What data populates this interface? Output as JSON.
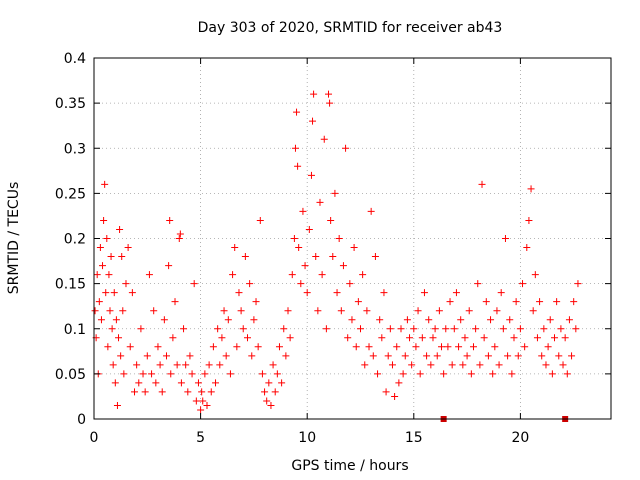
{
  "chart_data": {
    "type": "scatter",
    "title": "Day 303 of 2020, SRMTID for receiver ab43",
    "xlabel": "GPS time / hours",
    "ylabel": "SRMTID / TECUs",
    "xlim": [
      0,
      24.25
    ],
    "ylim": [
      0,
      0.4
    ],
    "grid": true,
    "marker_style": "plus",
    "color": "#ff0000",
    "x_ticks": [
      {
        "value": 0,
        "label": "0"
      },
      {
        "value": 5,
        "label": "5"
      },
      {
        "value": 10,
        "label": "10"
      },
      {
        "value": 15,
        "label": "15"
      },
      {
        "value": 20,
        "label": "20"
      }
    ],
    "y_ticks": [
      {
        "value": 0,
        "label": "0"
      },
      {
        "value": 0.05,
        "label": "0.05"
      },
      {
        "value": 0.1,
        "label": "0.1"
      },
      {
        "value": 0.15,
        "label": "0.15"
      },
      {
        "value": 0.2,
        "label": "0.2"
      },
      {
        "value": 0.25,
        "label": "0.25"
      },
      {
        "value": 0.3,
        "label": "0.3"
      },
      {
        "value": 0.35,
        "label": "0.35"
      },
      {
        "value": 0.4,
        "label": "0.4"
      }
    ],
    "series": [
      {
        "name": "SRMTID",
        "points": [
          [
            0.05,
            0.12
          ],
          [
            0.1,
            0.09
          ],
          [
            0.15,
            0.16
          ],
          [
            0.2,
            0.05
          ],
          [
            0.25,
            0.13
          ],
          [
            0.3,
            0.19
          ],
          [
            0.35,
            0.11
          ],
          [
            0.4,
            0.17
          ],
          [
            0.45,
            0.22
          ],
          [
            0.5,
            0.26
          ],
          [
            0.55,
            0.14
          ],
          [
            0.6,
            0.2
          ],
          [
            0.65,
            0.08
          ],
          [
            0.7,
            0.16
          ],
          [
            0.75,
            0.12
          ],
          [
            0.8,
            0.18
          ],
          [
            0.85,
            0.1
          ],
          [
            0.9,
            0.06
          ],
          [
            0.95,
            0.14
          ],
          [
            1.0,
            0.04
          ],
          [
            1.05,
            0.11
          ],
          [
            1.1,
            0.015
          ],
          [
            1.15,
            0.09
          ],
          [
            1.2,
            0.21
          ],
          [
            1.25,
            0.07
          ],
          [
            1.3,
            0.18
          ],
          [
            1.35,
            0.12
          ],
          [
            1.4,
            0.05
          ],
          [
            1.5,
            0.15
          ],
          [
            1.6,
            0.19
          ],
          [
            1.7,
            0.08
          ],
          [
            1.8,
            0.14
          ],
          [
            1.9,
            0.03
          ],
          [
            2.0,
            0.06
          ],
          [
            2.1,
            0.04
          ],
          [
            2.2,
            0.1
          ],
          [
            2.3,
            0.05
          ],
          [
            2.4,
            0.03
          ],
          [
            2.5,
            0.07
          ],
          [
            2.6,
            0.16
          ],
          [
            2.7,
            0.05
          ],
          [
            2.8,
            0.12
          ],
          [
            2.9,
            0.04
          ],
          [
            3.0,
            0.08
          ],
          [
            3.1,
            0.06
          ],
          [
            3.2,
            0.03
          ],
          [
            3.3,
            0.11
          ],
          [
            3.4,
            0.07
          ],
          [
            3.5,
            0.17
          ],
          [
            3.55,
            0.22
          ],
          [
            3.6,
            0.05
          ],
          [
            3.7,
            0.09
          ],
          [
            3.8,
            0.13
          ],
          [
            3.9,
            0.06
          ],
          [
            4.0,
            0.2
          ],
          [
            4.05,
            0.205
          ],
          [
            4.1,
            0.04
          ],
          [
            4.2,
            0.1
          ],
          [
            4.3,
            0.06
          ],
          [
            4.4,
            0.03
          ],
          [
            4.5,
            0.07
          ],
          [
            4.6,
            0.05
          ],
          [
            4.7,
            0.15
          ],
          [
            4.8,
            0.02
          ],
          [
            4.9,
            0.04
          ],
          [
            5.0,
            0.01
          ],
          [
            5.05,
            0.03
          ],
          [
            5.1,
            0.02
          ],
          [
            5.2,
            0.05
          ],
          [
            5.3,
            0.015
          ],
          [
            5.4,
            0.06
          ],
          [
            5.5,
            0.03
          ],
          [
            5.6,
            0.08
          ],
          [
            5.7,
            0.04
          ],
          [
            5.8,
            0.1
          ],
          [
            5.9,
            0.06
          ],
          [
            6.0,
            0.09
          ],
          [
            6.1,
            0.12
          ],
          [
            6.2,
            0.07
          ],
          [
            6.3,
            0.11
          ],
          [
            6.4,
            0.05
          ],
          [
            6.5,
            0.16
          ],
          [
            6.6,
            0.19
          ],
          [
            6.7,
            0.08
          ],
          [
            6.8,
            0.14
          ],
          [
            6.9,
            0.12
          ],
          [
            7.0,
            0.1
          ],
          [
            7.1,
            0.18
          ],
          [
            7.2,
            0.09
          ],
          [
            7.3,
            0.15
          ],
          [
            7.4,
            0.07
          ],
          [
            7.5,
            0.11
          ],
          [
            7.6,
            0.13
          ],
          [
            7.7,
            0.08
          ],
          [
            7.8,
            0.22
          ],
          [
            7.9,
            0.05
          ],
          [
            8.0,
            0.03
          ],
          [
            8.1,
            0.02
          ],
          [
            8.2,
            0.04
          ],
          [
            8.3,
            0.015
          ],
          [
            8.4,
            0.06
          ],
          [
            8.5,
            0.03
          ],
          [
            8.6,
            0.05
          ],
          [
            8.7,
            0.08
          ],
          [
            8.8,
            0.04
          ],
          [
            8.9,
            0.1
          ],
          [
            9.0,
            0.07
          ],
          [
            9.1,
            0.12
          ],
          [
            9.2,
            0.09
          ],
          [
            9.3,
            0.16
          ],
          [
            9.4,
            0.2
          ],
          [
            9.45,
            0.3
          ],
          [
            9.5,
            0.34
          ],
          [
            9.55,
            0.28
          ],
          [
            9.6,
            0.19
          ],
          [
            9.7,
            0.15
          ],
          [
            9.8,
            0.23
          ],
          [
            9.9,
            0.17
          ],
          [
            10.0,
            0.14
          ],
          [
            10.1,
            0.21
          ],
          [
            10.2,
            0.27
          ],
          [
            10.25,
            0.33
          ],
          [
            10.3,
            0.36
          ],
          [
            10.4,
            0.18
          ],
          [
            10.5,
            0.12
          ],
          [
            10.6,
            0.24
          ],
          [
            10.7,
            0.16
          ],
          [
            10.8,
            0.31
          ],
          [
            10.9,
            0.1
          ],
          [
            11.0,
            0.36
          ],
          [
            11.05,
            0.35
          ],
          [
            11.1,
            0.22
          ],
          [
            11.2,
            0.18
          ],
          [
            11.3,
            0.25
          ],
          [
            11.4,
            0.14
          ],
          [
            11.5,
            0.2
          ],
          [
            11.6,
            0.12
          ],
          [
            11.7,
            0.17
          ],
          [
            11.8,
            0.3
          ],
          [
            11.9,
            0.09
          ],
          [
            12.0,
            0.15
          ],
          [
            12.1,
            0.11
          ],
          [
            12.2,
            0.19
          ],
          [
            12.3,
            0.08
          ],
          [
            12.4,
            0.13
          ],
          [
            12.5,
            0.1
          ],
          [
            12.6,
            0.16
          ],
          [
            12.7,
            0.06
          ],
          [
            12.8,
            0.12
          ],
          [
            12.9,
            0.08
          ],
          [
            13.0,
            0.23
          ],
          [
            13.1,
            0.07
          ],
          [
            13.2,
            0.18
          ],
          [
            13.3,
            0.05
          ],
          [
            13.4,
            0.11
          ],
          [
            13.5,
            0.09
          ],
          [
            13.6,
            0.14
          ],
          [
            13.7,
            0.03
          ],
          [
            13.8,
            0.07
          ],
          [
            13.9,
            0.1
          ],
          [
            14.0,
            0.06
          ],
          [
            14.1,
            0.025
          ],
          [
            14.2,
            0.08
          ],
          [
            14.3,
            0.04
          ],
          [
            14.4,
            0.1
          ],
          [
            14.5,
            0.05
          ],
          [
            14.6,
            0.07
          ],
          [
            14.7,
            0.11
          ],
          [
            14.8,
            0.09
          ],
          [
            14.9,
            0.06
          ],
          [
            15.0,
            0.1
          ],
          [
            15.1,
            0.08
          ],
          [
            15.2,
            0.12
          ],
          [
            15.3,
            0.05
          ],
          [
            15.4,
            0.09
          ],
          [
            15.5,
            0.14
          ],
          [
            15.6,
            0.07
          ],
          [
            15.7,
            0.11
          ],
          [
            15.8,
            0.06
          ],
          [
            15.9,
            0.09
          ],
          [
            16.0,
            0.1
          ],
          [
            16.1,
            0.07
          ],
          [
            16.2,
            0.12
          ],
          [
            16.3,
            0.08
          ],
          [
            16.4,
            0.05
          ],
          [
            16.5,
            0.1
          ],
          [
            16.6,
            0.08
          ],
          [
            16.7,
            0.13
          ],
          [
            16.8,
            0.06
          ],
          [
            16.9,
            0.1
          ],
          [
            17.0,
            0.14
          ],
          [
            17.1,
            0.08
          ],
          [
            17.2,
            0.11
          ],
          [
            17.3,
            0.06
          ],
          [
            17.4,
            0.09
          ],
          [
            17.5,
            0.07
          ],
          [
            17.6,
            0.12
          ],
          [
            17.7,
            0.05
          ],
          [
            17.8,
            0.08
          ],
          [
            17.9,
            0.1
          ],
          [
            18.0,
            0.15
          ],
          [
            18.1,
            0.06
          ],
          [
            18.2,
            0.26
          ],
          [
            18.3,
            0.09
          ],
          [
            18.4,
            0.13
          ],
          [
            18.5,
            0.07
          ],
          [
            18.6,
            0.11
          ],
          [
            18.7,
            0.05
          ],
          [
            18.8,
            0.08
          ],
          [
            18.9,
            0.12
          ],
          [
            19.0,
            0.06
          ],
          [
            19.1,
            0.14
          ],
          [
            19.2,
            0.1
          ],
          [
            19.3,
            0.2
          ],
          [
            19.4,
            0.07
          ],
          [
            19.5,
            0.11
          ],
          [
            19.6,
            0.05
          ],
          [
            19.7,
            0.09
          ],
          [
            19.8,
            0.13
          ],
          [
            19.9,
            0.07
          ],
          [
            20.0,
            0.1
          ],
          [
            20.1,
            0.15
          ],
          [
            20.2,
            0.08
          ],
          [
            20.3,
            0.19
          ],
          [
            20.4,
            0.22
          ],
          [
            20.5,
            0.255
          ],
          [
            20.6,
            0.12
          ],
          [
            20.7,
            0.16
          ],
          [
            20.8,
            0.09
          ],
          [
            20.9,
            0.13
          ],
          [
            21.0,
            0.07
          ],
          [
            21.1,
            0.1
          ],
          [
            21.2,
            0.06
          ],
          [
            21.3,
            0.08
          ],
          [
            21.4,
            0.11
          ],
          [
            21.5,
            0.05
          ],
          [
            21.6,
            0.09
          ],
          [
            21.7,
            0.13
          ],
          [
            21.8,
            0.07
          ],
          [
            21.9,
            0.1
          ],
          [
            22.0,
            0.06
          ],
          [
            22.1,
            0.09
          ],
          [
            22.2,
            0.05
          ],
          [
            22.3,
            0.11
          ],
          [
            22.4,
            0.07
          ],
          [
            22.5,
            0.13
          ],
          [
            22.6,
            0.1
          ],
          [
            22.7,
            0.15
          ]
        ]
      }
    ],
    "zero_markers_x": [
      16.4,
      22.1
    ]
  }
}
